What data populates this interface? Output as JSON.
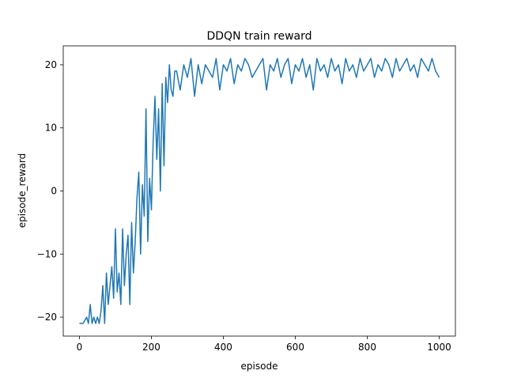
{
  "chart_data": {
    "type": "line",
    "title": "DDQN train reward",
    "xlabel": "episode",
    "ylabel": "episode_reward",
    "xlim": [
      -45,
      1045
    ],
    "ylim": [
      -23,
      23
    ],
    "xticks": [
      0,
      200,
      400,
      600,
      800,
      1000
    ],
    "yticks": [
      -20,
      -10,
      0,
      10,
      20
    ],
    "xtick_labels": [
      "0",
      "200",
      "400",
      "600",
      "800",
      "1000"
    ],
    "ytick_labels": [
      "−20",
      "−10",
      "0",
      "10",
      "20"
    ],
    "grid": false,
    "legend": "none",
    "color": "#1f77b4",
    "series": [
      {
        "x": [
          0,
          10,
          20,
          25,
          30,
          35,
          40,
          45,
          50,
          55,
          60,
          65,
          70,
          75,
          80,
          85,
          90,
          95,
          100,
          105,
          110,
          115,
          120,
          125,
          130,
          135,
          140,
          145,
          150,
          155,
          160,
          165,
          170,
          175,
          180,
          185,
          190,
          195,
          200,
          205,
          210,
          215,
          220,
          225,
          230,
          235,
          240,
          245,
          250,
          255,
          260,
          265,
          270,
          280,
          290,
          300,
          310,
          320,
          330,
          340,
          350,
          360,
          370,
          380,
          390,
          400,
          410,
          420,
          430,
          440,
          450,
          460,
          470,
          480,
          490,
          500,
          510,
          520,
          530,
          540,
          550,
          560,
          570,
          580,
          590,
          600,
          610,
          620,
          630,
          640,
          650,
          660,
          670,
          680,
          690,
          700,
          710,
          720,
          730,
          740,
          750,
          760,
          770,
          780,
          790,
          800,
          810,
          820,
          830,
          840,
          850,
          860,
          870,
          880,
          890,
          900,
          910,
          920,
          930,
          940,
          950,
          960,
          970,
          980,
          990,
          1000
        ],
        "y": [
          -21,
          -21,
          -20,
          -21,
          -18,
          -21,
          -20,
          -21,
          -20,
          -21,
          -19,
          -15,
          -21,
          -13,
          -18,
          -15,
          -12,
          -17,
          -6,
          -16,
          -13,
          -18,
          -6,
          -15,
          -10,
          -7,
          -18,
          -5,
          -13,
          -8,
          -1,
          3,
          -10,
          1,
          -4,
          13,
          -8,
          2,
          -3,
          8,
          15,
          5,
          13,
          0,
          17,
          4,
          18,
          14,
          20,
          16,
          15,
          19,
          19,
          16,
          20,
          18,
          21,
          15,
          20,
          17,
          20,
          19,
          18,
          21,
          16,
          20,
          19,
          21,
          17,
          20,
          19,
          21,
          20,
          18,
          19,
          20,
          21,
          16,
          20,
          19,
          21,
          18,
          20,
          21,
          17,
          20,
          19,
          21,
          18,
          20,
          16,
          21,
          19,
          20,
          18,
          21,
          19,
          20,
          17,
          21,
          19,
          20,
          18,
          21,
          19,
          20,
          21,
          18,
          20,
          19,
          21,
          20,
          18,
          21,
          19,
          20,
          21,
          19,
          20,
          18,
          21,
          20,
          19,
          21,
          19,
          18
        ]
      }
    ]
  }
}
